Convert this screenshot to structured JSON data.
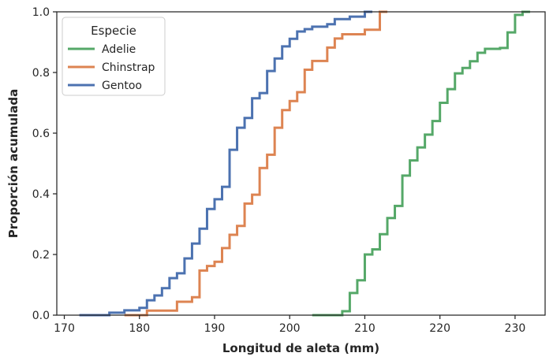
{
  "chart_data": {
    "type": "line",
    "subtype": "ecdf-step",
    "title": "",
    "xlabel": "Longitud de aleta (mm)",
    "ylabel": "Proporción acumulada",
    "xlim": [
      169,
      234
    ],
    "ylim": [
      0,
      1
    ],
    "xticks": [
      170,
      180,
      190,
      200,
      210,
      220,
      230
    ],
    "xtick_labels": [
      "170",
      "180",
      "190",
      "200",
      "210",
      "220",
      "230"
    ],
    "yticks": [
      0,
      0.2,
      0.4,
      0.6,
      0.8,
      1.0
    ],
    "ytick_labels": [
      "0.0",
      "0.2",
      "0.4",
      "0.6",
      "0.8",
      "1.0"
    ],
    "grid": false,
    "legend": {
      "title": "Especie",
      "position": "top-left"
    },
    "series": [
      {
        "name": "Adelie",
        "color": "#55a868",
        "x": [
          203,
          207,
          208,
          209,
          210,
          211,
          212,
          213,
          214,
          215,
          216,
          217,
          218,
          219,
          220,
          221,
          222,
          223,
          224,
          225,
          226,
          228,
          229,
          230,
          231
        ],
        "y": [
          0.0,
          0.013,
          0.073,
          0.115,
          0.2,
          0.217,
          0.267,
          0.32,
          0.36,
          0.46,
          0.51,
          0.553,
          0.595,
          0.64,
          0.7,
          0.745,
          0.797,
          0.815,
          0.837,
          0.865,
          0.878,
          0.881,
          0.932,
          0.99,
          1.0
        ]
      },
      {
        "name": "Chinstrap",
        "color": "#dd8452",
        "x": [
          178,
          181,
          185,
          187,
          188,
          189,
          190,
          191,
          192,
          193,
          194,
          195,
          196,
          197,
          198,
          199,
          200,
          201,
          202,
          203,
          205,
          206,
          207,
          210,
          212
        ],
        "y": [
          0.0,
          0.015,
          0.044,
          0.059,
          0.147,
          0.162,
          0.176,
          0.221,
          0.265,
          0.294,
          0.368,
          0.397,
          0.485,
          0.529,
          0.618,
          0.676,
          0.706,
          0.735,
          0.809,
          0.838,
          0.882,
          0.912,
          0.926,
          0.941,
          0.985
        ]
      },
      {
        "name": "Gentoo",
        "color": "#4c72b0",
        "x": [
          172,
          174,
          176,
          178,
          180,
          181,
          182,
          183,
          184,
          185,
          186,
          187,
          188,
          189,
          190,
          191,
          192,
          193,
          194,
          195,
          196,
          197,
          198,
          199,
          200,
          201,
          202,
          203,
          205,
          206,
          208,
          210
        ],
        "y": [
          0.0,
          0.0,
          0.008,
          0.016,
          0.024,
          0.049,
          0.065,
          0.089,
          0.122,
          0.138,
          0.187,
          0.236,
          0.285,
          0.35,
          0.382,
          0.423,
          0.545,
          0.618,
          0.65,
          0.715,
          0.732,
          0.805,
          0.846,
          0.886,
          0.911,
          0.935,
          0.943,
          0.951,
          0.959,
          0.976,
          0.984,
          0.992
        ]
      }
    ]
  }
}
